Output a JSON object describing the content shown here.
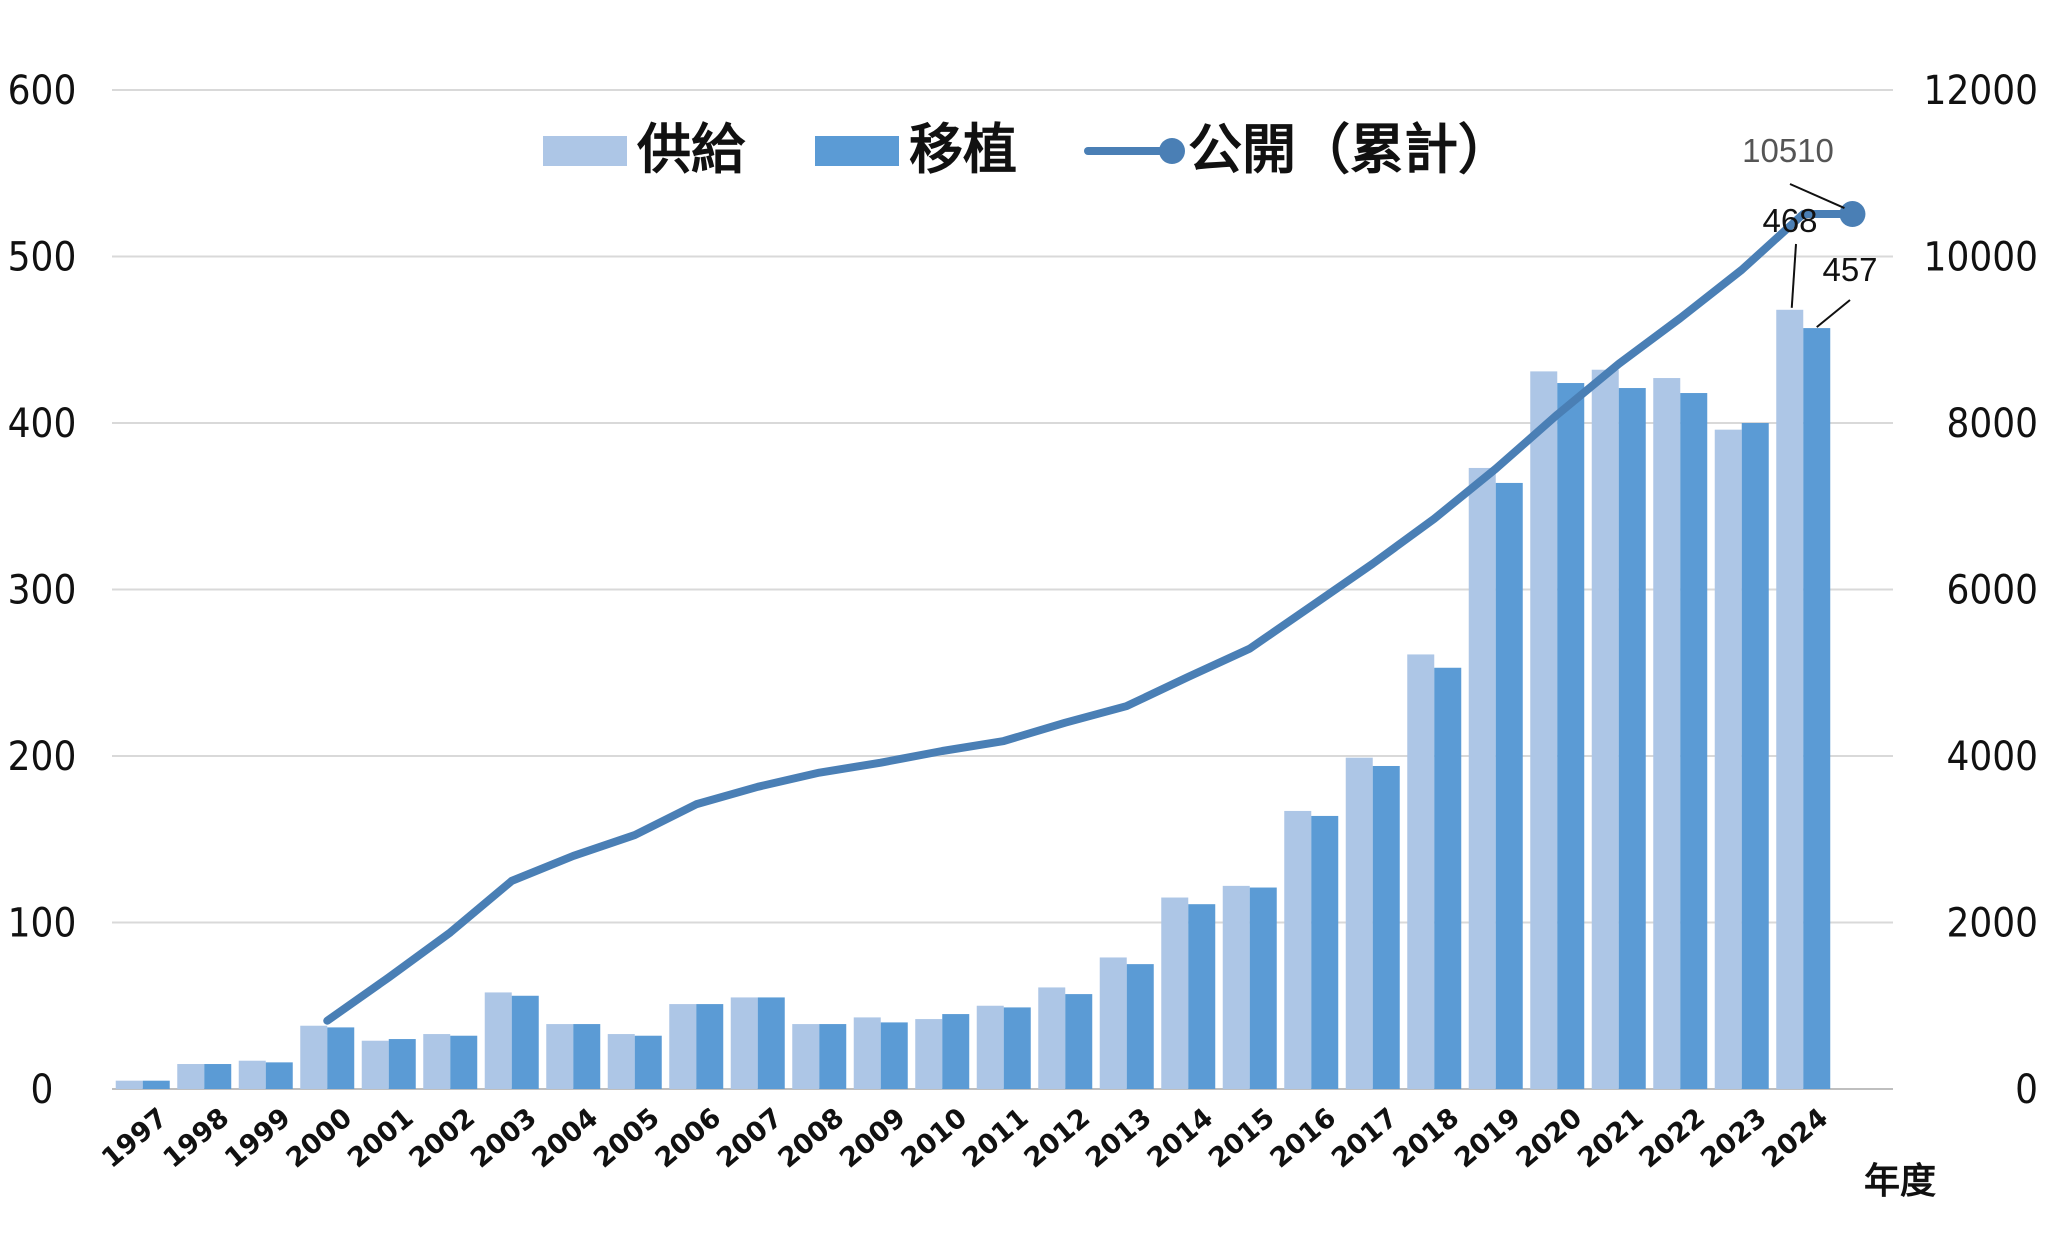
{
  "chart_data": {
    "type": "bar+line",
    "categories": [
      "1997",
      "1998",
      "1999",
      "2000",
      "2001",
      "2002",
      "2003",
      "2004",
      "2005",
      "2006",
      "2007",
      "2008",
      "2009",
      "2010",
      "2011",
      "2012",
      "2013",
      "2014",
      "2015",
      "2016",
      "2017",
      "2018",
      "2019",
      "2020",
      "2021",
      "2022",
      "2023",
      "2024"
    ],
    "series": [
      {
        "name": "供給",
        "type": "bar",
        "axis": "left",
        "color": "#adc6e6",
        "values": [
          5,
          15,
          17,
          38,
          29,
          33,
          58,
          39,
          33,
          51,
          55,
          39,
          43,
          42,
          50,
          61,
          79,
          115,
          122,
          167,
          199,
          261,
          373,
          431,
          432,
          427,
          396,
          468
        ]
      },
      {
        "name": "移植",
        "type": "bar",
        "axis": "left",
        "color": "#5b9bd5",
        "values": [
          5,
          15,
          16,
          37,
          30,
          32,
          56,
          39,
          32,
          51,
          55,
          39,
          40,
          45,
          49,
          57,
          75,
          111,
          121,
          164,
          194,
          253,
          364,
          424,
          421,
          418,
          400,
          457
        ]
      },
      {
        "name": "公開（累計）",
        "type": "line",
        "axis": "right",
        "color": "#4a7fb5",
        "x": [
          "2000",
          "2001",
          "2002",
          "2003",
          "2004",
          "2005",
          "2006",
          "2007",
          "2008",
          "2009",
          "2010",
          "2011",
          "2012",
          "2013",
          "2014",
          "2015",
          "2016",
          "2017",
          "2018",
          "2019",
          "2020",
          "2021",
          "2022",
          "2023",
          "2024",
          "2024.8"
        ],
        "values": [
          820,
          1340,
          1880,
          2500,
          2800,
          3050,
          3420,
          3630,
          3800,
          3920,
          4060,
          4180,
          4400,
          4600,
          4950,
          5290,
          5800,
          6310,
          6850,
          7450,
          8100,
          8710,
          9260,
          9840,
          10510,
          10510
        ]
      }
    ],
    "left_axis": {
      "ylim": [
        0,
        600
      ],
      "ticks": [
        0,
        100,
        200,
        300,
        400,
        500,
        600
      ],
      "tick_labels": [
        "0",
        "100",
        "200",
        "300",
        "400",
        "500",
        "600"
      ]
    },
    "right_axis": {
      "ylim": [
        0,
        12000
      ],
      "ticks": [
        0,
        2000,
        4000,
        6000,
        8000,
        10000,
        12000
      ],
      "tick_labels": [
        "0",
        "2000",
        "4000",
        "6000",
        "8000",
        "10000",
        "12000"
      ]
    },
    "xlabel": "年度",
    "legend": {
      "position": "top-center",
      "entries": [
        "供給",
        "移植",
        "公開（累計）"
      ]
    },
    "annotations": [
      {
        "text": "10510",
        "target": "公開（累計）"
      },
      {
        "text": "468",
        "target": "供給"
      },
      {
        "text": "457",
        "target": "移植"
      }
    ],
    "grid": true
  }
}
